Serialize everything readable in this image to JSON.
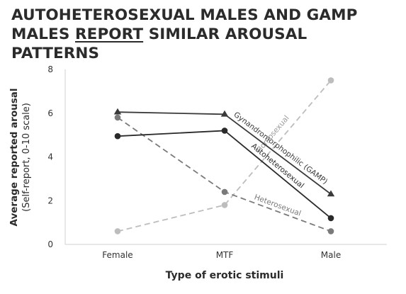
{
  "title": {
    "line1": "AUTOHETEROSEXUAL MALES AND GAMP",
    "line2_before": "MALES ",
    "line2_underlined": "REPORT",
    "line2_after": " SIMILAR AROUSAL PATTERNS"
  },
  "chart_data": {
    "type": "line",
    "categories": [
      "Female",
      "MTF",
      "Male"
    ],
    "xlabel": "Type of erotic stimuli",
    "ylabel_line1": "Average reported arousal",
    "ylabel_line2": "(Self-report, 0-10 scale)",
    "ylim": [
      0,
      8
    ],
    "yticks": [
      0,
      2,
      4,
      6,
      8
    ],
    "grid": false,
    "series": [
      {
        "name": "Homosexual",
        "values": [
          0.6,
          1.8,
          7.5
        ],
        "color": "#bdbdbd",
        "line": "dashed",
        "marker": "circle"
      },
      {
        "name": "Heterosexual",
        "values": [
          5.8,
          2.4,
          0.6
        ],
        "color": "#7a7a7a",
        "line": "dashed",
        "marker": "circle"
      },
      {
        "name": "Gynandromorphophilic (GAMP)",
        "values": [
          6.05,
          5.95,
          2.3
        ],
        "color": "#3a3a3a",
        "line": "solid",
        "marker": "triangle"
      },
      {
        "name": "Autoheterosexual",
        "values": [
          4.95,
          5.2,
          1.2
        ],
        "color": "#2a2a2a",
        "line": "solid",
        "marker": "circle"
      }
    ]
  }
}
